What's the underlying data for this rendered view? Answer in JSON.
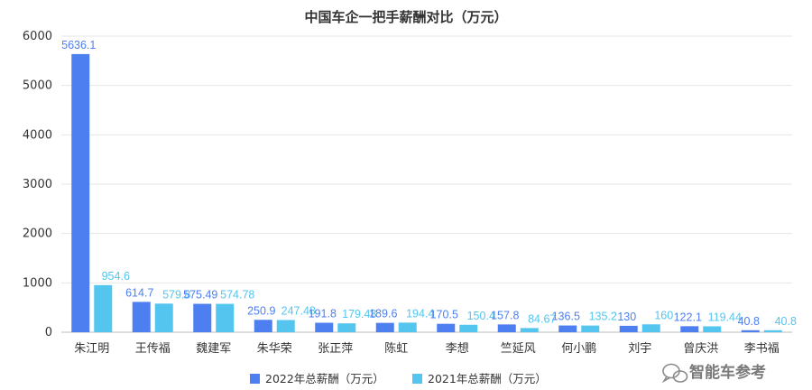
{
  "chart_data": {
    "type": "bar",
    "title": "中国车企一把手薪酬对比（万元）",
    "categories": [
      "朱江明",
      "王传福",
      "魏建军",
      "朱华荣",
      "张正萍",
      "陈虹",
      "李想",
      "竺延风",
      "何小鹏",
      "刘宇",
      "曾庆洪",
      "李书福"
    ],
    "series": [
      {
        "name": "2022年总薪酬（万元）",
        "color": "#4d7ff0",
        "values": [
          5636.1,
          614.7,
          575.49,
          250.9,
          191.8,
          189.6,
          170.5,
          157.8,
          136.5,
          130,
          122.1,
          40.8
        ],
        "labels": [
          "5636.1",
          "614.7",
          "575.49",
          "250.9",
          "191.8",
          "189.6",
          "170.5",
          "157.8",
          "136.5",
          "130",
          "122.1",
          "40.8"
        ]
      },
      {
        "name": "2021年总薪酬（万元）",
        "color": "#54c5ee",
        "values": [
          954.6,
          579.8,
          574.78,
          247.48,
          179.48,
          194.4,
          150.4,
          84.67,
          135.2,
          160,
          119.44,
          40.8
        ],
        "labels": [
          "954.6",
          "579.8",
          "574.78",
          "247.48",
          "179.48",
          "194.4",
          "150.4",
          "84.67",
          "135.2",
          "160",
          "119.44",
          "40.8"
        ]
      }
    ],
    "ylim": [
      0,
      6000
    ],
    "yticks": [
      0,
      1000,
      2000,
      3000,
      4000,
      5000,
      6000
    ],
    "grid": true,
    "legend_position": "bottom"
  },
  "watermark": {
    "text": "智能车参考",
    "icon": "wechat-icon"
  }
}
